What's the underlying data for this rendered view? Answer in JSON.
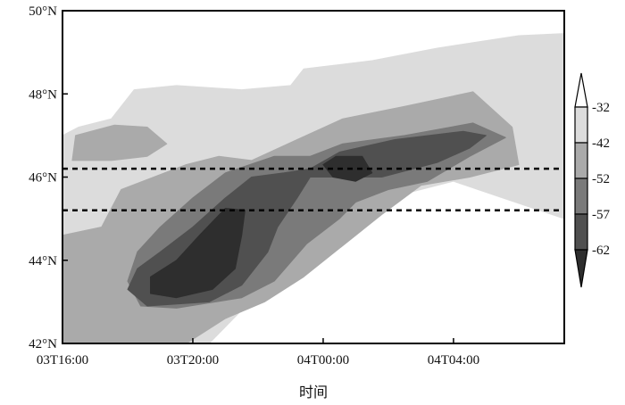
{
  "chart_data": {
    "type": "heatmap",
    "title": "",
    "xlabel": "时间",
    "ylabel": "",
    "x_ticks": [
      "03T16:00",
      "03T20:00",
      "04T00:00",
      "04T04:00"
    ],
    "x_tick_hours": [
      0,
      4,
      8,
      12
    ],
    "xlim_hours": [
      0,
      15.4
    ],
    "y_ticks": [
      "42°N",
      "44°N",
      "46°N",
      "48°N",
      "50°N"
    ],
    "y_tick_values": [
      42,
      44,
      46,
      48,
      50
    ],
    "ylim": [
      42,
      50
    ],
    "reference_lines_lat": [
      46.2,
      45.2
    ],
    "reference_line_style": "dashed",
    "colorbar": {
      "levels": [
        -32,
        -42,
        -52,
        -57,
        -62
      ],
      "level_labels": [
        "-32",
        "-42",
        "-52",
        "-57",
        "-62"
      ],
      "colors": [
        "#ffffff",
        "#dcdcdc",
        "#aaaaaa",
        "#7a7a7a",
        "#505050",
        "#2e2e2e"
      ],
      "placement": "right",
      "extend": "both"
    },
    "contours": [
      {
        "level": -32,
        "polygons": [
          [
            [
              0,
              42
            ],
            [
              0,
              47.0
            ],
            [
              0.5,
              47.2
            ],
            [
              1.5,
              47.4
            ],
            [
              2.2,
              48.1
            ],
            [
              3.5,
              48.2
            ],
            [
              5.5,
              48.1
            ],
            [
              7.0,
              48.2
            ],
            [
              7.4,
              48.6
            ],
            [
              9.5,
              48.8
            ],
            [
              11.5,
              49.1
            ],
            [
              14.0,
              49.4
            ],
            [
              15.4,
              49.45
            ],
            [
              15.4,
              45.0
            ],
            [
              13.5,
              45.5
            ],
            [
              12.0,
              45.9
            ],
            [
              10.5,
              45.6
            ],
            [
              9.2,
              45.1
            ],
            [
              8.2,
              44.6
            ],
            [
              7.2,
              43.8
            ],
            [
              6.5,
              43.3
            ],
            [
              5.5,
              42.8
            ],
            [
              4.5,
              42
            ]
          ]
        ]
      },
      {
        "level": -42,
        "polygons": [
          [
            [
              0.3,
              46.4
            ],
            [
              0.4,
              47.0
            ],
            [
              1.6,
              47.25
            ],
            [
              2.6,
              47.2
            ],
            [
              3.2,
              46.8
            ],
            [
              2.6,
              46.5
            ],
            [
              1.5,
              46.4
            ]
          ],
          [
            [
              0,
              42
            ],
            [
              0,
              44.6
            ],
            [
              1.2,
              44.8
            ],
            [
              1.8,
              45.7
            ],
            [
              3.8,
              46.3
            ],
            [
              4.8,
              46.5
            ],
            [
              5.8,
              46.4
            ],
            [
              7.2,
              46.9
            ],
            [
              8.6,
              47.4
            ],
            [
              10.5,
              47.7
            ],
            [
              12.6,
              48.05
            ],
            [
              13.8,
              47.2
            ],
            [
              14.0,
              46.3
            ],
            [
              12.5,
              46.0
            ],
            [
              11.0,
              45.8
            ],
            [
              9.8,
              45.1
            ],
            [
              9.0,
              44.6
            ],
            [
              7.4,
              43.6
            ],
            [
              6.2,
              43.0
            ],
            [
              5.0,
              42.6
            ],
            [
              3.8,
              42
            ]
          ]
        ]
      },
      {
        "level": -52,
        "polygons": [
          [
            [
              2.3,
              44.2
            ],
            [
              2.0,
              43.5
            ],
            [
              2.4,
              42.9
            ],
            [
              3.5,
              42.85
            ],
            [
              5.5,
              43.1
            ],
            [
              6.5,
              43.5
            ],
            [
              7.5,
              44.4
            ],
            [
              8.5,
              45.0
            ],
            [
              9.0,
              45.4
            ],
            [
              10.0,
              45.7
            ],
            [
              11.2,
              45.9
            ],
            [
              12.5,
              46.5
            ],
            [
              13.6,
              46.95
            ],
            [
              12.6,
              47.3
            ],
            [
              10.5,
              47.0
            ],
            [
              8.6,
              46.8
            ],
            [
              7.6,
              46.5
            ],
            [
              6.5,
              46.5
            ],
            [
              5.0,
              46.1
            ],
            [
              4.0,
              45.5
            ],
            [
              3.0,
              44.8
            ]
          ]
        ]
      },
      {
        "level": -57,
        "polygons": [
          [
            [
              2.3,
              43.8
            ],
            [
              2.0,
              43.3
            ],
            [
              2.6,
              42.9
            ],
            [
              4.5,
              43.0
            ],
            [
              5.5,
              43.4
            ],
            [
              6.3,
              44.2
            ],
            [
              6.6,
              44.8
            ],
            [
              7.2,
              45.5
            ],
            [
              7.6,
              46.0
            ],
            [
              8.5,
              46.0
            ],
            [
              9.8,
              46.0
            ],
            [
              11.5,
              46.35
            ],
            [
              12.5,
              46.7
            ],
            [
              13.0,
              47.0
            ],
            [
              12.3,
              47.1
            ],
            [
              10.2,
              46.9
            ],
            [
              8.5,
              46.6
            ],
            [
              7.6,
              46.2
            ],
            [
              6.8,
              46.1
            ],
            [
              5.8,
              46.0
            ],
            [
              5.0,
              45.5
            ],
            [
              4.0,
              44.8
            ],
            [
              3.0,
              44.2
            ]
          ]
        ]
      },
      {
        "level": -62,
        "polygons": [
          [
            [
              2.7,
              43.6
            ],
            [
              2.7,
              43.2
            ],
            [
              3.5,
              43.1
            ],
            [
              4.6,
              43.3
            ],
            [
              5.3,
              43.8
            ],
            [
              5.5,
              44.6
            ],
            [
              5.6,
              45.2
            ],
            [
              5.0,
              45.25
            ],
            [
              4.2,
              44.6
            ],
            [
              3.5,
              44.0
            ]
          ],
          [
            [
              8.0,
              46.3
            ],
            [
              8.3,
              46.0
            ],
            [
              9.0,
              45.9
            ],
            [
              9.5,
              46.1
            ],
            [
              9.2,
              46.5
            ],
            [
              8.4,
              46.5
            ]
          ]
        ]
      }
    ]
  }
}
